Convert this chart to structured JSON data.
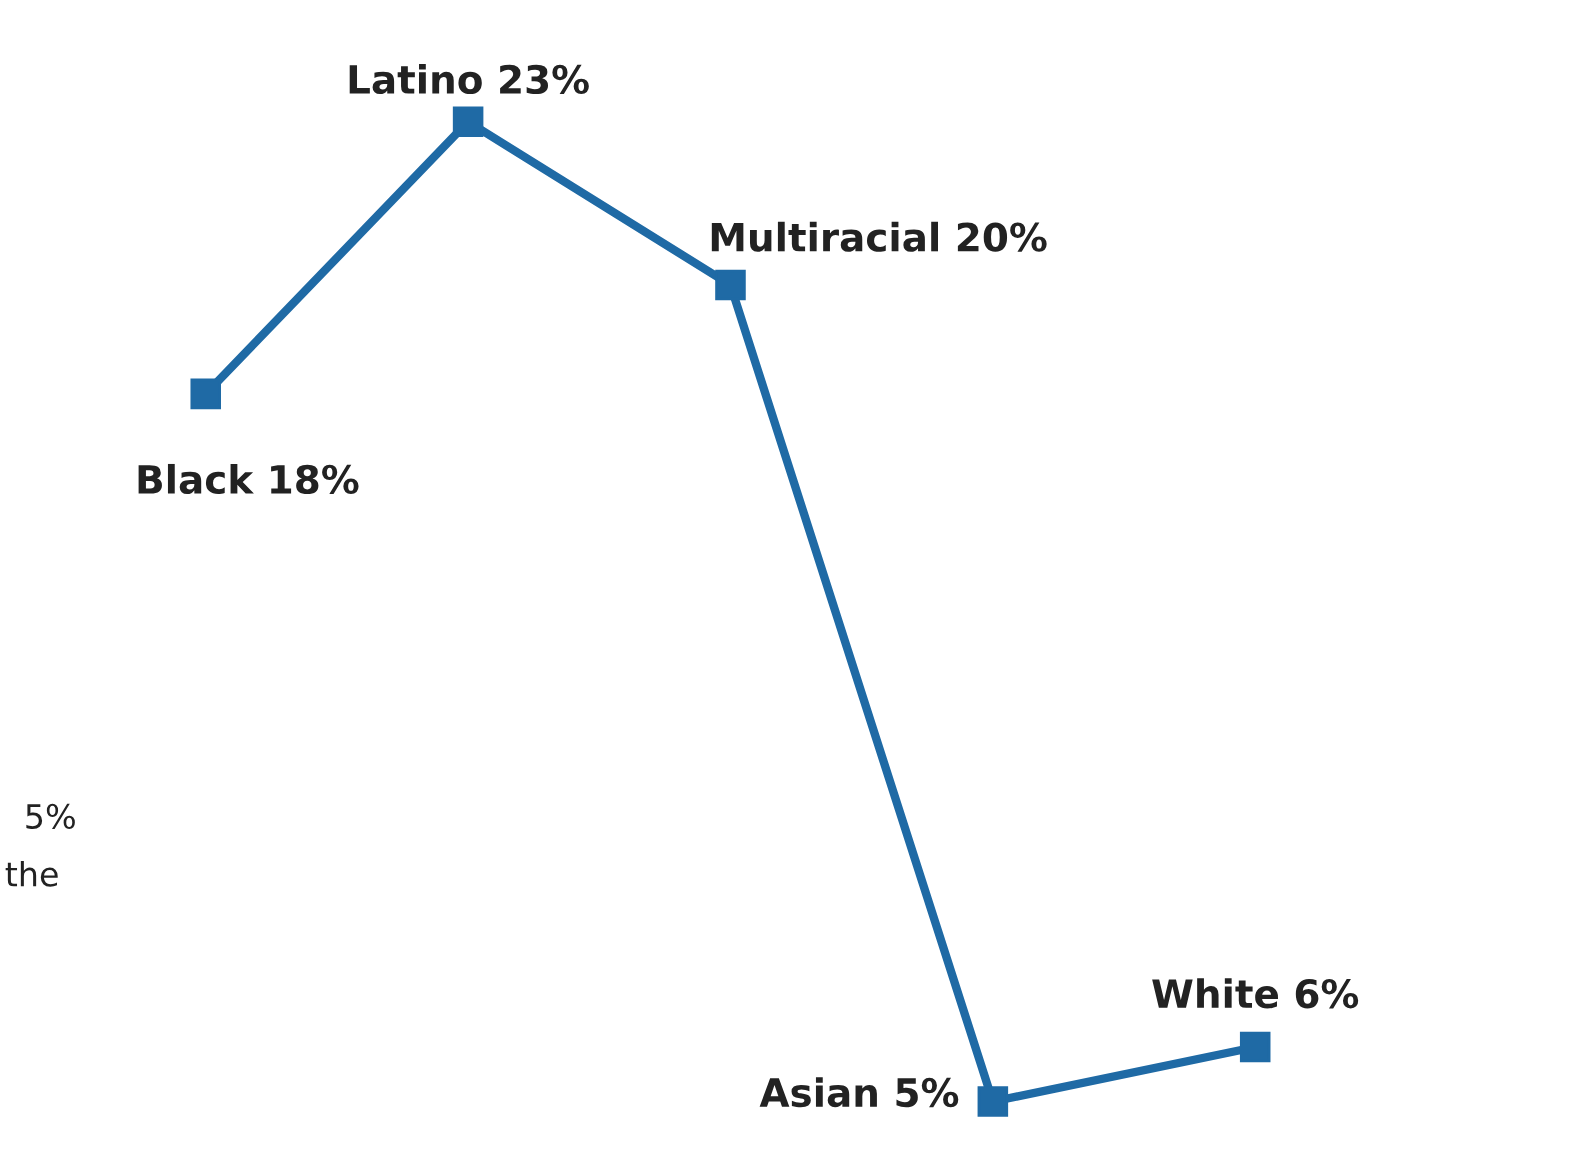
{
  "chart_data": {
    "type": "line",
    "categories": [
      null,
      null,
      null,
      null,
      null
    ],
    "tick_labels": false,
    "series": [
      {
        "color": "#1f6aa5",
        "values": [
          18,
          23,
          20,
          5,
          6
        ],
        "value_labels": [
          "Black 18%",
          "Latino 23%",
          "Multiracial 20%",
          "Asian 5%",
          "White 6%"
        ]
      }
    ],
    "marker": "square",
    "line_style": "solid",
    "annotations": [
      "5%",
      "the"
    ]
  }
}
